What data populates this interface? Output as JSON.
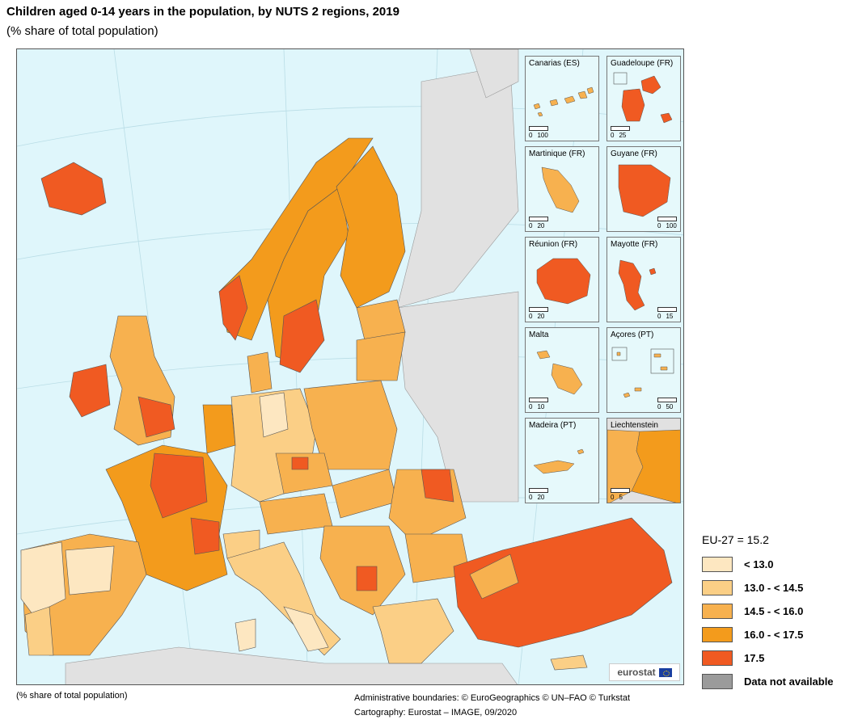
{
  "title": "Children aged 0-14 years in the population, by NUTS 2 regions, 2019",
  "subtitle": "(% share of total population)",
  "colors": {
    "sea": "#dff6fb",
    "non_eu_land": "#e1e1e1",
    "class1": "#fde7c1",
    "class2": "#fbcf86",
    "class3": "#f7b14f",
    "class4": "#f39b1c",
    "class5": "#f05a22",
    "na": "#9b9b9b"
  },
  "insets": [
    {
      "name": "Canarias (ES)",
      "scale": [
        "0",
        "100"
      ]
    },
    {
      "name": "Guadeloupe (FR)",
      "scale": [
        "0",
        "25"
      ]
    },
    {
      "name": "Martinique (FR)",
      "scale": [
        "0",
        "20"
      ]
    },
    {
      "name": "Guyane (FR)",
      "scale": [
        "0",
        "100"
      ]
    },
    {
      "name": "Réunion (FR)",
      "scale": [
        "0",
        "20"
      ]
    },
    {
      "name": "Mayotte (FR)",
      "scale": [
        "0",
        "15"
      ]
    },
    {
      "name": "Malta",
      "scale": [
        "0",
        "10"
      ]
    },
    {
      "name": "Açores (PT)",
      "scale": [
        "0",
        "50"
      ]
    },
    {
      "name": "Madeira (PT)",
      "scale": [
        "0",
        "20"
      ]
    },
    {
      "name": "Liechtenstein",
      "scale": [
        "0",
        "5"
      ]
    }
  ],
  "logo": "eurostat",
  "legend": {
    "eu_value": "EU-27 = 15.2",
    "items": [
      {
        "label": "< 13.0",
        "color": "#fde7c1"
      },
      {
        "label": "13.0 - < 14.5",
        "color": "#fbcf86"
      },
      {
        "label": "14.5 - < 16.0",
        "color": "#f7b14f"
      },
      {
        "label": "16.0 - < 17.5",
        "color": "#f39b1c"
      },
      {
        "label": "17.5",
        "color": "#f05a22"
      },
      {
        "label": "Data not available",
        "color": "#9b9b9b"
      }
    ]
  },
  "footnote_left": "(% share of total population)",
  "footnote_right": {
    "line1": "Administrative boundaries: © EuroGeographics © UN–FAO © Turkstat",
    "line2": "Cartography: Eurostat – IMAGE, 09/2020"
  }
}
